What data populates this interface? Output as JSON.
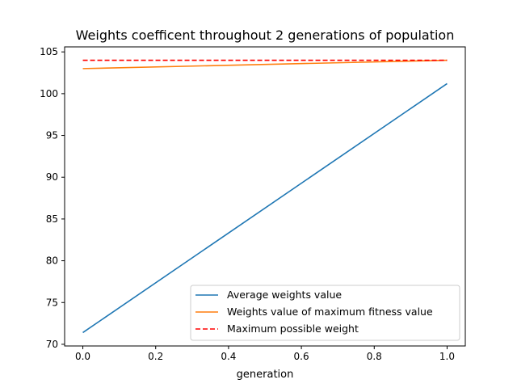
{
  "chart_data": {
    "type": "line",
    "title": "Weights coefficent throughout 2 generations of population",
    "xlabel": "generation",
    "ylabel": "",
    "xlim": [
      -0.05,
      1.05
    ],
    "ylim": [
      69.8,
      105.6
    ],
    "xticks": [
      0.0,
      0.2,
      0.4,
      0.6,
      0.8,
      1.0
    ],
    "xtick_labels": [
      "0.0",
      "0.2",
      "0.4",
      "0.6",
      "0.8",
      "1.0"
    ],
    "yticks": [
      70,
      75,
      80,
      85,
      90,
      95,
      100,
      105
    ],
    "ytick_labels": [
      "70",
      "75",
      "80",
      "85",
      "90",
      "95",
      "100",
      "105"
    ],
    "grid": false,
    "legend_position": "lower-right",
    "series": [
      {
        "name": "Average weights value",
        "x": [
          0,
          1
        ],
        "y": [
          71.4,
          101.2
        ],
        "color": "#1f77b4",
        "style": "solid"
      },
      {
        "name": "Weights value of maximum fitness value",
        "x": [
          0,
          1
        ],
        "y": [
          103.0,
          104.0
        ],
        "color": "#ff7f0e",
        "style": "solid"
      },
      {
        "name": "Maximum possible weight",
        "x": [
          0,
          1
        ],
        "y": [
          104.0,
          104.0
        ],
        "color": "#ff0000",
        "style": "dashed"
      }
    ]
  }
}
